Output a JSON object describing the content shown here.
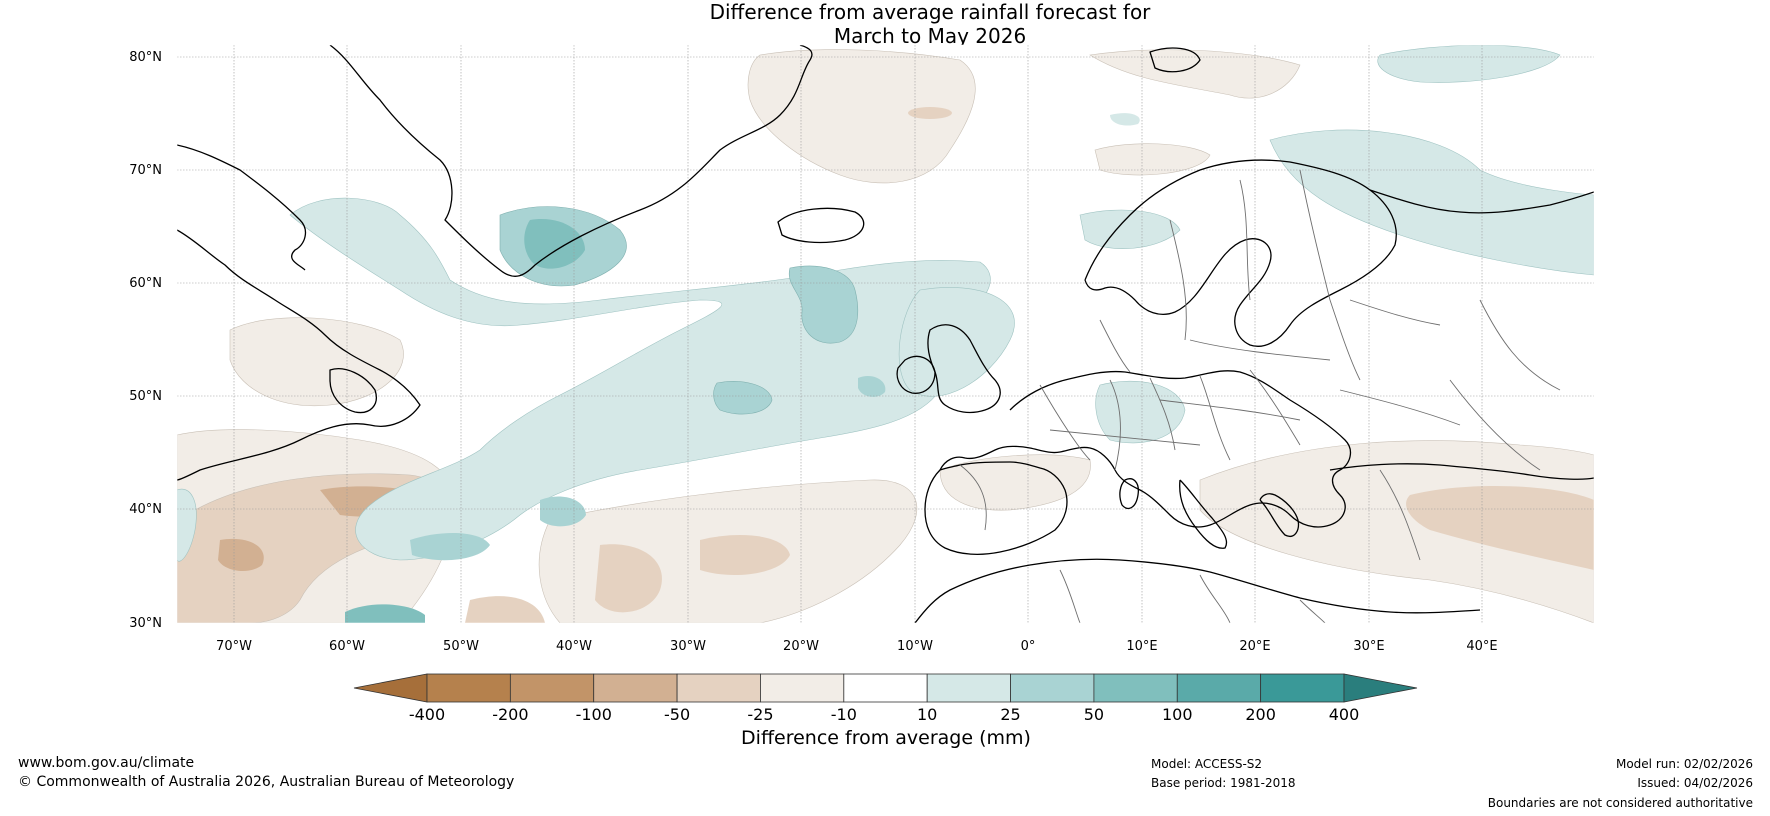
{
  "title": {
    "line1": "Difference from average rainfall forecast for",
    "line2": "March to May 2026"
  },
  "map": {
    "region": "North Atlantic and Europe",
    "lat_labels": [
      "80°N",
      "70°N",
      "60°N",
      "50°N",
      "40°N",
      "30°N"
    ],
    "lon_labels": [
      "70°W",
      "60°W",
      "50°W",
      "40°W",
      "30°W",
      "20°W",
      "10°W",
      "0°",
      "10°E",
      "20°E",
      "30°E",
      "40°E"
    ],
    "extent": {
      "lon_min": -75,
      "lon_max": 50,
      "lat_min": 30,
      "lat_max": 81
    }
  },
  "colorbar": {
    "title": "Difference from average (mm)",
    "ticks": [
      "-400",
      "-200",
      "-100",
      "-50",
      "-25",
      "-10",
      "10",
      "25",
      "50",
      "100",
      "200",
      "400"
    ],
    "colors": [
      "#a66f3a",
      "#b5814d",
      "#c29468",
      "#d2b092",
      "#e5d2c1",
      "#f2ede7",
      "#ffffff",
      "#d5e8e7",
      "#a9d3d3",
      "#80bfbd",
      "#5aaaa9",
      "#3a9998",
      "#2a7e7d"
    ]
  },
  "footer": {
    "website": "www.bom.gov.au/climate",
    "copyright": "© Commonwealth of Australia 2026, Australian Bureau of Meteorology",
    "model": "Model: ACCESS-S2",
    "base_period": "Base period: 1981-2018",
    "model_run": "Model run: 02/02/2026",
    "issued": "Issued: 04/02/2026",
    "disclaimer": "Boundaries are not considered authoritative"
  }
}
